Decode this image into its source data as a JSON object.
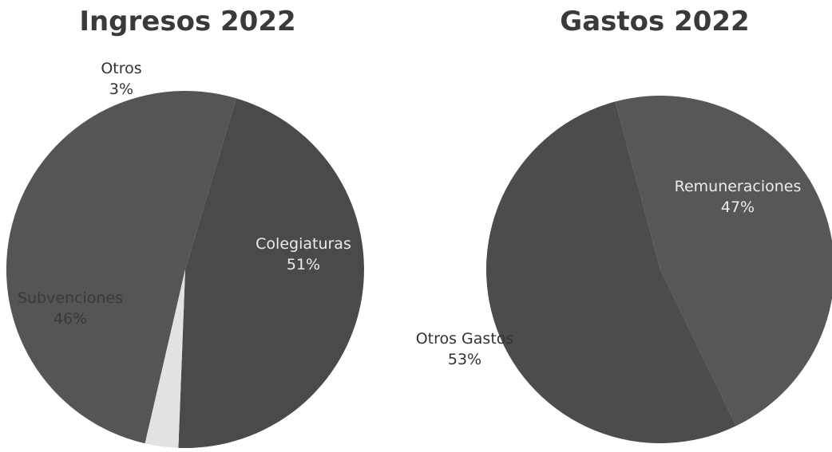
{
  "chart_data": [
    {
      "type": "pie",
      "title": "Ingresos 2022",
      "slices": [
        {
          "label": "Colegiaturas",
          "value": 51,
          "value_label": "51%",
          "color": "#555555",
          "label_color": "#ececec"
        },
        {
          "label": "Subvenciones",
          "value": 46,
          "value_label": "46%",
          "color": "#4a4a4a",
          "label_color": "#3a3a3a"
        },
        {
          "label": "Otros",
          "value": 3,
          "value_label": "3%",
          "color": "#e2e2e2",
          "label_color": "#333333"
        }
      ]
    },
    {
      "type": "pie",
      "title": "Gastos 2022",
      "slices": [
        {
          "label": "Remuneraciones",
          "value": 47,
          "value_label": "47%",
          "color": "#575757",
          "label_color": "#ececec"
        },
        {
          "label": "Otros Gastos",
          "value": 53,
          "value_label": "53%",
          "color": "#4c4c4c",
          "label_color": "#333333"
        }
      ]
    }
  ]
}
